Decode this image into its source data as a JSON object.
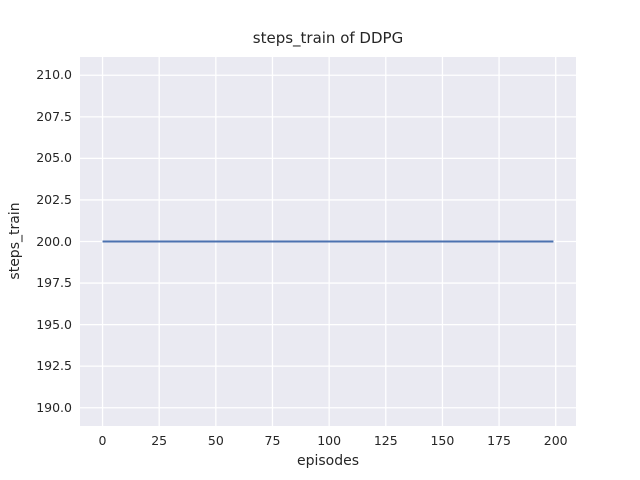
{
  "figure": {
    "background_color": "#ffffff"
  },
  "chart_data": {
    "type": "line",
    "title": "steps_train of DDPG",
    "xlabel": "episodes",
    "ylabel": "steps_train",
    "x_ticks": [
      "0",
      "25",
      "50",
      "75",
      "100",
      "125",
      "150",
      "175",
      "200"
    ],
    "y_ticks": [
      "190.0",
      "192.5",
      "195.0",
      "197.5",
      "200.0",
      "202.5",
      "205.0",
      "207.5",
      "210.0"
    ],
    "xlim": [
      -9.95,
      208.95
    ],
    "ylim": [
      188.9,
      211.1
    ],
    "grid": true,
    "legend": null,
    "style": {
      "axes_background": "#eaeaf2",
      "grid_color": "#ffffff",
      "grid_width": 1.3,
      "text_color": "#262626",
      "line_width": 2
    },
    "series": [
      {
        "name": "steps_train",
        "color": "#4c72b0",
        "x": [
          0,
          199
        ],
        "y": [
          200,
          200
        ],
        "description": "constant line at steps_train = 200 from episode 0 to episode 199"
      }
    ]
  }
}
